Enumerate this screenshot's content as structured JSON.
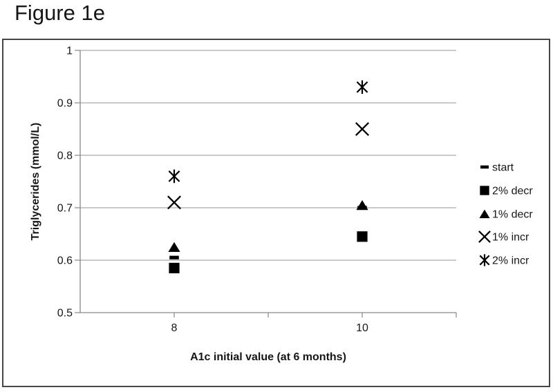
{
  "figure": {
    "title": "Figure 1e"
  },
  "chart_data": {
    "type": "scatter",
    "title": "Figure 1e",
    "xlabel": "A1c initial value (at 6 months)",
    "ylabel": "Triglycerides (mmol/L)",
    "x_categories": [
      "8",
      "10"
    ],
    "y_ticks": [
      1,
      0.9,
      0.8,
      0.7,
      0.6,
      0.5
    ],
    "y_tick_labels": [
      "1",
      "0.9",
      "0.8",
      "0.7",
      "0.6",
      "0.5"
    ],
    "ylim": [
      0.5,
      1.0
    ],
    "grid": "horizontal",
    "legend_position": "right",
    "series": [
      {
        "name": "start",
        "marker": "dash",
        "values": [
          0.605,
          0.7
        ]
      },
      {
        "name": "2% decr",
        "marker": "square",
        "values": [
          0.585,
          0.645
        ]
      },
      {
        "name": "1% decr",
        "marker": "triangle",
        "values": [
          0.625,
          0.705
        ]
      },
      {
        "name": "1% incr",
        "marker": "x",
        "values": [
          0.71,
          0.85
        ]
      },
      {
        "name": "2% incr",
        "marker": "star",
        "values": [
          0.76,
          0.93
        ]
      }
    ]
  },
  "colors": {
    "marker": "#000000",
    "gridline": "#a9a9a9",
    "axis": "#868686",
    "frame_border": "#454545",
    "text": "#161616",
    "background": "#ffffff"
  }
}
